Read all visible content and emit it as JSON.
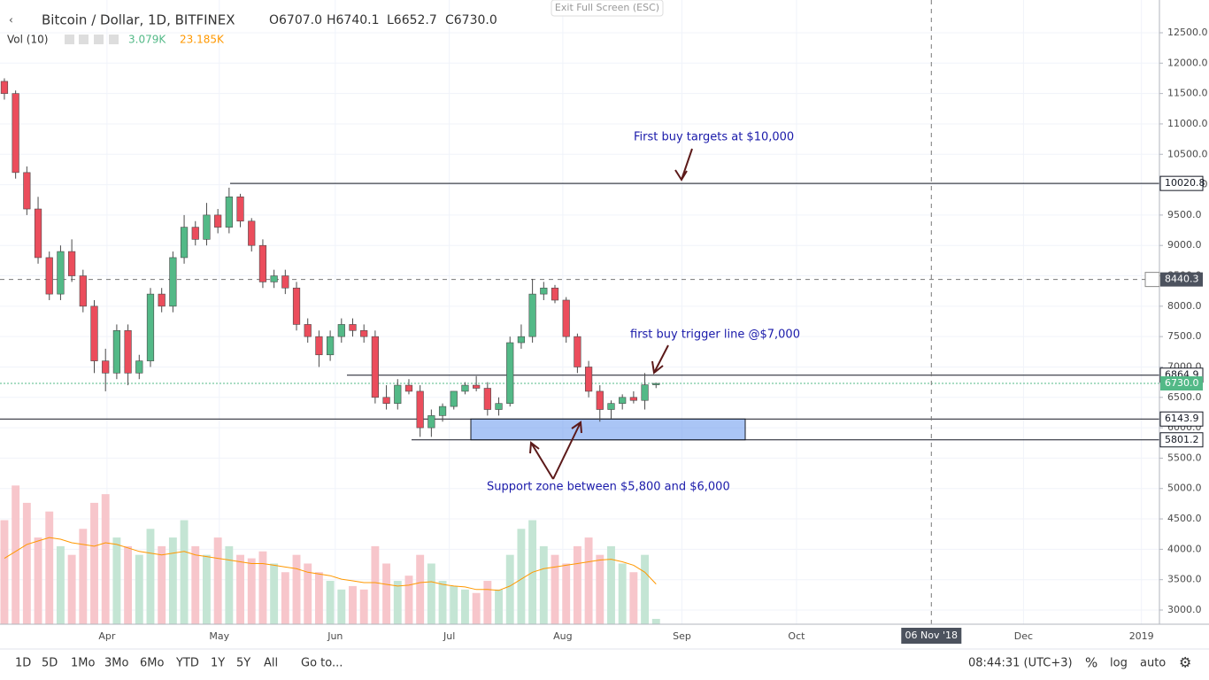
{
  "chart_data": {
    "type": "candlestick",
    "header": {
      "symbol": "Bitcoin / Dollar, 1D, BITFINEX",
      "open": "O6707.0",
      "high": "H6740.1",
      "low": "L6652.7",
      "close": "C6730.0"
    },
    "volume_legend": {
      "name": "Vol (10)",
      "volume": "3.079K",
      "ma": "23.185K"
    },
    "open": [
      11700,
      11500,
      10200,
      9600,
      8800,
      8200,
      8900,
      8500,
      8000,
      7100,
      6900,
      7600,
      6900,
      7100,
      8200,
      8000,
      8800,
      9300,
      9100,
      9500,
      9300,
      9800,
      9400,
      9000,
      8400,
      8500,
      8300,
      7700,
      7500,
      7200,
      7500,
      7700,
      7600,
      7500,
      6500,
      6400,
      6700,
      6600,
      6000,
      6200,
      6350,
      6600,
      6700,
      6650,
      6300,
      6400,
      7400,
      7500,
      8200,
      8300,
      8100,
      7500,
      7000,
      6600,
      6300,
      6400,
      6500,
      6450,
      6707
    ],
    "high": [
      11750,
      11550,
      10300,
      9800,
      8900,
      9000,
      9100,
      8600,
      8100,
      7300,
      7700,
      7700,
      7200,
      8300,
      8300,
      8900,
      9500,
      9400,
      9700,
      9600,
      9950,
      9850,
      9450,
      9100,
      8600,
      8600,
      8400,
      7800,
      7600,
      7600,
      7800,
      7800,
      7700,
      7600,
      6700,
      6800,
      6800,
      6700,
      6300,
      6400,
      6600,
      6750,
      6850,
      6750,
      6500,
      7500,
      7700,
      8450,
      8400,
      8350,
      8150,
      7550,
      7100,
      6700,
      6450,
      6550,
      6600,
      6900,
      6740.1
    ],
    "low": [
      11400,
      10100,
      9500,
      8700,
      8100,
      8100,
      8400,
      7900,
      6900,
      6600,
      6800,
      6700,
      6800,
      7000,
      7900,
      7900,
      8700,
      9000,
      9000,
      9200,
      9200,
      9300,
      8900,
      8300,
      8300,
      8200,
      7600,
      7400,
      7000,
      7100,
      7400,
      7500,
      7400,
      6400,
      6300,
      6300,
      6550,
      5850,
      5850,
      6100,
      6300,
      6550,
      6600,
      6200,
      6200,
      6350,
      7300,
      7400,
      8100,
      8050,
      7400,
      6900,
      6500,
      6100,
      6150,
      6300,
      6400,
      6300,
      6652.7
    ],
    "close": [
      11500,
      10200,
      9600,
      8800,
      8200,
      8900,
      8500,
      8000,
      7100,
      6900,
      7600,
      6900,
      7100,
      8200,
      8000,
      8800,
      9300,
      9100,
      9500,
      9300,
      9800,
      9400,
      9000,
      8400,
      8500,
      8300,
      7700,
      7500,
      7200,
      7500,
      7700,
      7600,
      7500,
      6500,
      6400,
      6700,
      6600,
      6000,
      6200,
      6350,
      6600,
      6700,
      6650,
      6300,
      6400,
      7400,
      7500,
      8200,
      8300,
      8100,
      7500,
      7000,
      6600,
      6300,
      6400,
      6500,
      6450,
      6707,
      6730
    ],
    "volume": [
      60000,
      80000,
      70000,
      50000,
      65000,
      45000,
      40000,
      55000,
      70000,
      75000,
      50000,
      45000,
      40000,
      55000,
      45000,
      50000,
      60000,
      45000,
      40000,
      50000,
      45000,
      40000,
      38000,
      42000,
      35000,
      30000,
      40000,
      35000,
      30000,
      25000,
      20000,
      22000,
      20000,
      45000,
      35000,
      25000,
      28000,
      40000,
      35000,
      25000,
      22000,
      20000,
      18000,
      25000,
      20000,
      40000,
      55000,
      60000,
      45000,
      40000,
      35000,
      45000,
      50000,
      40000,
      45000,
      35000,
      30000,
      40000,
      3079
    ],
    "volume_ma": [
      38000,
      42000,
      46000,
      48000,
      50000,
      49000,
      47000,
      46000,
      45000,
      47000,
      46000,
      44000,
      42000,
      41000,
      40000,
      41000,
      42000,
      40000,
      39000,
      38000,
      37000,
      36000,
      35000,
      35000,
      34000,
      33000,
      32000,
      30000,
      29000,
      28000,
      26000,
      25000,
      24000,
      24000,
      23000,
      22000,
      22500,
      24000,
      24500,
      23000,
      22000,
      21500,
      20000,
      20000,
      19500,
      22000,
      26000,
      30000,
      32000,
      33000,
      34000,
      35000,
      36000,
      37000,
      37500,
      36000,
      34000,
      30000,
      23185
    ],
    "up_color": "#53b987",
    "down_color": "#eb4d5c",
    "up_volume_color": "#c4e5d4",
    "down_volume_color": "#f7c6cb",
    "ma_color": "#ff9800",
    "xlim": [
      -0.39,
      102.8
    ],
    "xticks": [
      {
        "value": 9.13,
        "label": "Apr"
      },
      {
        "value": 19.13,
        "label": "May"
      },
      {
        "value": 29.45,
        "label": "Jun"
      },
      {
        "value": 39.6,
        "label": "Jul"
      },
      {
        "value": 49.7,
        "label": "Aug"
      },
      {
        "value": 60.3,
        "label": "Sep"
      },
      {
        "value": 70.5,
        "label": "Oct"
      },
      {
        "value": 90.7,
        "label": "Dec"
      },
      {
        "value": 101.2,
        "label": "2019"
      }
    ],
    "ylim": [
      2767,
      13039
    ],
    "y2lim": [
      0,
      360000
    ],
    "yticks": [
      {
        "value": 3000,
        "label": "3000.0"
      },
      {
        "value": 3500,
        "label": "3500.0"
      },
      {
        "value": 4000,
        "label": "4000.0"
      },
      {
        "value": 4500,
        "label": "4500.0"
      },
      {
        "value": 5000,
        "label": "5000.0"
      },
      {
        "value": 5500,
        "label": "5500.0"
      },
      {
        "value": 6000,
        "label": "6000.0"
      },
      {
        "value": 6500,
        "label": "6500.0"
      },
      {
        "value": 7000,
        "label": "7000.0"
      },
      {
        "value": 7500,
        "label": "7500.0"
      },
      {
        "value": 8000,
        "label": "8000.0"
      },
      {
        "value": 8500,
        "label": "8500.0"
      },
      {
        "value": 9000,
        "label": "9000.0"
      },
      {
        "value": 9500,
        "label": "9500.0"
      },
      {
        "value": 10000,
        "label": "10000.0"
      },
      {
        "value": 10500,
        "label": "10500.0"
      },
      {
        "value": 11000,
        "label": "11000.0"
      },
      {
        "value": 11500,
        "label": "11500.0"
      },
      {
        "value": 12000,
        "label": "12000.0"
      },
      {
        "value": 12500,
        "label": "12500.0"
      }
    ],
    "hlines": [
      {
        "value": 10020.8,
        "label": "10020.8"
      },
      {
        "value": 6864.9,
        "label": "6864.9"
      },
      {
        "value": 6730.0,
        "label": "6730.0"
      },
      {
        "value": 6143.9,
        "label": "6143.9"
      },
      {
        "value": 5801.2,
        "label": "5801.2"
      }
    ],
    "crosshair": {
      "x": 82.5,
      "x_label": "06 Nov '18",
      "y": {
        "value": 8440.3,
        "label": "8440.3"
      }
    },
    "annotations": [
      "First buy targets at $10,000",
      "first buy trigger line @$7,000",
      "Support zone between $5,800 and $6,000"
    ],
    "grid": true
  },
  "toolbar": {
    "exit": "Exit Full Screen (ESC)",
    "ranges": [
      "1D",
      "5D",
      "1Mo",
      "3Mo",
      "6Mo",
      "YTD",
      "1Y",
      "5Y",
      "All"
    ],
    "goto": "Go to...",
    "time": "08:44:31 (UTC+3)",
    "percent": "%",
    "log": "log",
    "auto": "auto"
  }
}
